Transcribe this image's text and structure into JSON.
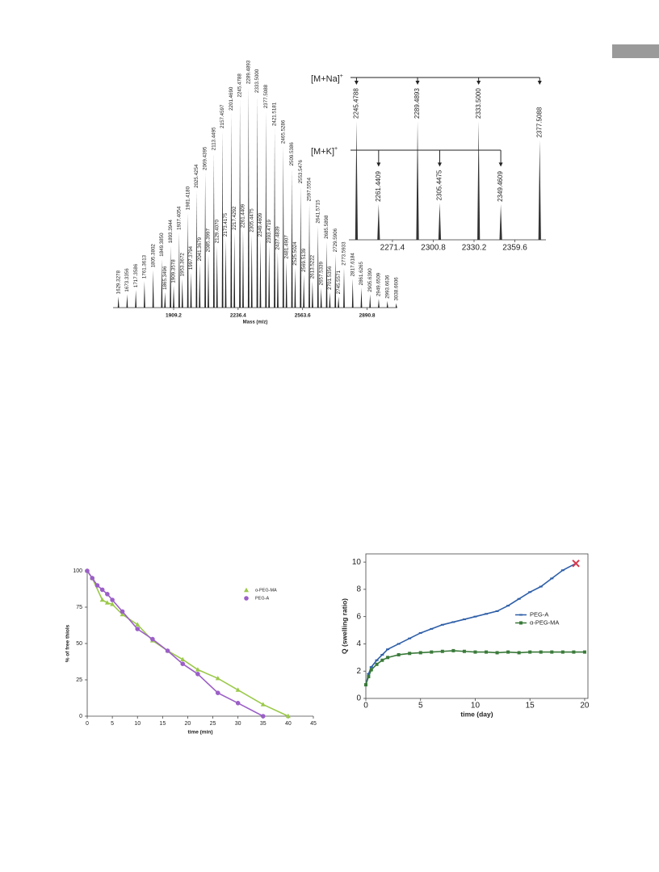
{
  "chart_data": [
    {
      "type": "spectrum",
      "xlabel": "Mass (m/z)",
      "xlim": [
        1602,
        3044
      ],
      "xticks": [
        1909.2,
        2236.4,
        2563.6,
        2890.8
      ],
      "ylim": [
        0,
        100
      ],
      "series": [
        {
          "color": "#222222",
          "labels": [
            "1629.3278",
            "1673.3356",
            "1717.3586",
            "1761.3613",
            "1805.3802",
            "1849.3850",
            "1865.3496",
            "1893.3944",
            "1909.3578",
            "1937.4054",
            "1953.3672",
            "1981.4180",
            "1997.3794",
            "2025.4254",
            "2041.3679",
            "2069.4395",
            "2085.3997",
            "2113.4495",
            "2129.4070",
            "2157.4597",
            "2173.4175",
            "2201.4690",
            "2217.4292",
            "2245.4788",
            "2261.4409",
            "2289.4893",
            "2305.4475",
            "2333.5000",
            "2349.4609",
            "2377.5088",
            "2393.4719",
            "2421.5181",
            "2437.4839",
            "2465.5286",
            "2481.4907",
            "2509.5386",
            "2525.5024",
            "2553.5476",
            "2569.5139",
            "2597.5554",
            "2613.5222",
            "2641.5715",
            "2657.5339",
            "2685.5898",
            "2701.5356",
            "2729.5906",
            "2745.5571",
            "2773.5933",
            "2817.6184",
            "2861.6265",
            "2905.6390",
            "2949.6509",
            "2993.6636",
            "3038.6606"
          ],
          "values": [
            5,
            6,
            8,
            12,
            17,
            22,
            7,
            28,
            10,
            34,
            13,
            43,
            16,
            53,
            20,
            61,
            24,
            70,
            28,
            80,
            31,
            88,
            34,
            94,
            35,
            100,
            33,
            96,
            31,
            89,
            28,
            81,
            25,
            73,
            21,
            63,
            18,
            55,
            15,
            47,
            12,
            37,
            9,
            30,
            7,
            24,
            5,
            18,
            13,
            9,
            6,
            4,
            3,
            2
          ]
        }
      ]
    },
    {
      "type": "spectrum",
      "xlim": [
        2240,
        2382
      ],
      "xticks": [
        2271.4,
        2300.8,
        2330.2,
        2359.6
      ],
      "ylim": [
        0,
        100
      ],
      "series": [
        {
          "name": "[M+Na]",
          "name_sup": "+",
          "color": "#333333",
          "labels": [
            "2245.4788",
            "2289.4893",
            "2333.5000",
            "2377.5088"
          ],
          "values": [
            100,
            100,
            100,
            84
          ]
        },
        {
          "name": "[M+K]",
          "name_sup": "+",
          "color": "#333333",
          "labels": [
            "2261.4409",
            "2305.4475",
            "2349.4609"
          ],
          "values": [
            30,
            31,
            30
          ]
        }
      ]
    },
    {
      "type": "line",
      "xlabel": "time (min)",
      "ylabel": "% of free thiols",
      "xlim": [
        0,
        45
      ],
      "xticks": [
        0,
        5,
        10,
        15,
        20,
        25,
        30,
        35,
        40,
        45
      ],
      "ylim": [
        0,
        100
      ],
      "yticks": [
        0,
        25,
        50,
        75,
        100
      ],
      "frame": false,
      "legend": "upper right",
      "series": [
        {
          "name": "α-PEG-MA",
          "color": "#9bc94a",
          "marker": "triangle",
          "x": [
            0,
            1,
            3,
            4,
            5,
            7,
            10,
            13,
            16,
            19,
            22,
            26,
            30,
            35,
            40
          ],
          "values": [
            100,
            95,
            80,
            78,
            77,
            70,
            63,
            52,
            45,
            39,
            32,
            26,
            18,
            8,
            0
          ]
        },
        {
          "name": "PEG-A",
          "color": "#9b5fc7",
          "marker": "circle",
          "x": [
            0,
            1,
            2,
            3,
            4,
            5,
            7,
            10,
            13,
            16,
            19,
            22,
            26,
            30,
            35
          ],
          "values": [
            100,
            95,
            90,
            87,
            84,
            80,
            72,
            60,
            53,
            45,
            36,
            29,
            16,
            9,
            0
          ]
        }
      ]
    },
    {
      "type": "line",
      "xlabel": "time (day)",
      "ylabel": "Q (swelling ratio)",
      "xlim": [
        0,
        20.3
      ],
      "xticks": [
        0,
        5,
        10,
        15,
        20
      ],
      "ylim": [
        0,
        10.6
      ],
      "yticks": [
        0,
        2,
        4,
        6,
        8,
        10
      ],
      "frame": true,
      "legend": "center right",
      "series": [
        {
          "name": "PEG-A",
          "color": "#2e5fa8",
          "marker": "dash",
          "end_marker_color": "#d9364a",
          "x": [
            0,
            0.25,
            0.5,
            1,
            1.5,
            2,
            3,
            4,
            5,
            6,
            7,
            8,
            9,
            10,
            11,
            12,
            13,
            14,
            15,
            16,
            17,
            18,
            19.2
          ],
          "values": [
            1.0,
            1.8,
            2.3,
            2.8,
            3.2,
            3.6,
            4.0,
            4.4,
            4.8,
            5.1,
            5.4,
            5.6,
            5.8,
            6.0,
            6.2,
            6.4,
            6.8,
            7.3,
            7.8,
            8.2,
            8.8,
            9.4,
            9.9
          ]
        },
        {
          "name": "α-PEG-MA",
          "color": "#3a7a3a",
          "marker": "square",
          "x": [
            0,
            0.25,
            0.5,
            1,
            1.5,
            2,
            3,
            4,
            5,
            6,
            7,
            8,
            9,
            10,
            11,
            12,
            13,
            14,
            15,
            16,
            17,
            18,
            19,
            20
          ],
          "values": [
            1.0,
            1.6,
            2.1,
            2.5,
            2.8,
            3.0,
            3.2,
            3.3,
            3.35,
            3.4,
            3.45,
            3.5,
            3.45,
            3.4,
            3.4,
            3.35,
            3.4,
            3.35,
            3.4,
            3.4,
            3.4,
            3.4,
            3.4,
            3.4
          ]
        }
      ]
    }
  ]
}
